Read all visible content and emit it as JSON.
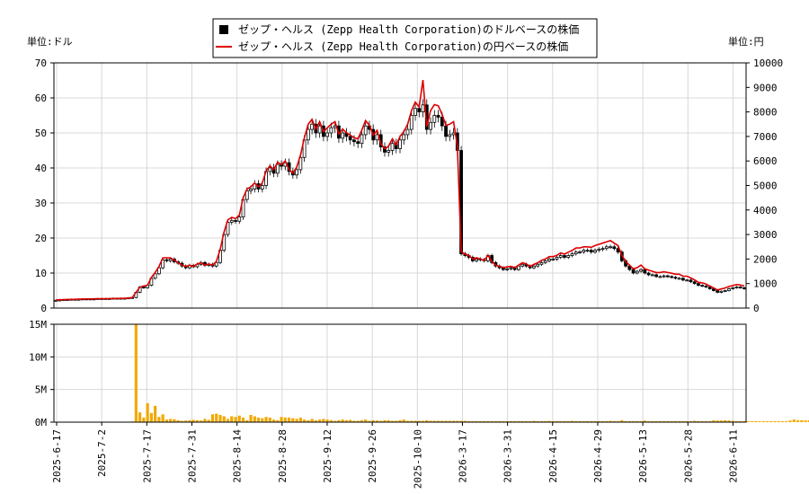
{
  "chart_data": {
    "type": "line",
    "legend": {
      "placement": "top-center",
      "entries": [
        {
          "label": "ゼップ・ヘルス (Zepp Health Corporation)のドルベースの株価",
          "color": "#000000",
          "marker": "candlestick"
        },
        {
          "label": "ゼップ・ヘルス (Zepp Health Corporation)の円ベースの株価",
          "color": "#dd0000",
          "marker": "line"
        }
      ]
    },
    "y_left_label": "単位:ドル",
    "y_right_label": "単位:円",
    "y_left": {
      "min": 0,
      "max": 70,
      "ticks": [
        "0",
        "10",
        "20",
        "30",
        "40",
        "50",
        "60",
        "70"
      ]
    },
    "y_right": {
      "min": 0,
      "max": 10000,
      "ticks": [
        "0",
        "1000",
        "2000",
        "3000",
        "4000",
        "5000",
        "6000",
        "7000",
        "8000",
        "9000",
        "10000"
      ]
    },
    "volume": {
      "min": 0,
      "max": 15000000,
      "ticks": [
        "0M",
        "5M",
        "10M",
        "15M"
      ],
      "values": [
        0,
        0,
        0,
        0,
        0,
        0,
        0,
        0,
        0,
        0,
        0,
        0,
        0,
        0,
        0,
        0,
        0,
        0,
        0,
        0,
        100000,
        15000000,
        1500000,
        700000,
        2900000,
        1400000,
        2500000,
        800000,
        1200000,
        400000,
        500000,
        450000,
        300000,
        200000,
        250000,
        300000,
        350000,
        300000,
        250000,
        500000,
        350000,
        1200000,
        1300000,
        1100000,
        900000,
        500000,
        900000,
        800000,
        1000000,
        700000,
        300000,
        1100000,
        900000,
        700000,
        600000,
        800000,
        700000,
        400000,
        300000,
        800000,
        700000,
        700000,
        600000,
        500000,
        700000,
        400000,
        300000,
        500000,
        300000,
        400000,
        500000,
        400000,
        300000,
        200000,
        300000,
        400000,
        300000,
        350000,
        200000,
        200000,
        300000,
        400000,
        200000,
        300000,
        250000,
        200000,
        300000,
        300000,
        200000,
        200000,
        300000,
        400000,
        200000,
        200000,
        200000,
        200000,
        200000,
        300000,
        200000,
        200000,
        200000,
        200000,
        200000,
        200000,
        200000,
        200000,
        200000,
        200000,
        150000,
        150000,
        150000,
        150000,
        150000,
        150000,
        150000,
        150000,
        150000,
        150000,
        150000,
        150000,
        150000,
        150000,
        150000,
        150000,
        150000,
        200000,
        150000,
        150000,
        150000,
        200000,
        150000,
        150000,
        150000,
        150000,
        150000,
        200000,
        150000,
        150000,
        150000,
        150000,
        150000,
        150000,
        150000,
        150000,
        150000,
        200000,
        150000,
        150000,
        300000,
        150000,
        150000,
        150000,
        150000,
        150000,
        250000,
        150000,
        150000,
        150000,
        150000,
        150000,
        150000,
        150000,
        150000,
        150000,
        150000,
        150000,
        150000,
        200000,
        150000,
        150000,
        150000,
        150000,
        300000,
        250000,
        250000,
        300000,
        250000,
        200000,
        150000,
        150000,
        150000,
        150000,
        150000,
        150000,
        150000,
        150000,
        150000,
        150000,
        150000,
        150000,
        150000,
        150000,
        250000,
        400000,
        300000,
        300000,
        250000,
        300000,
        400000,
        600000,
        500000,
        250000,
        250000,
        150000,
        150000
      ]
    },
    "x_ticks": [
      "2025-6-17",
      "2025-7-2",
      "2025-7-17",
      "2025-7-31",
      "2025-8-14",
      "2025-8-28",
      "2025-9-12",
      "2025-9-26",
      "2025-10-10",
      "2026-3-17",
      "2026-3-31",
      "2026-4-15",
      "2026-4-29",
      "2026-5-13",
      "2026-5-28",
      "2026-6-11"
    ],
    "usd_close": [
      2.2,
      2.3,
      2.4,
      2.4,
      2.5,
      2.5,
      2.5,
      2.6,
      2.6,
      2.6,
      2.6,
      2.7,
      2.7,
      2.7,
      2.7,
      2.8,
      2.8,
      2.8,
      2.8,
      2.9,
      3.0,
      4.5,
      6.0,
      5.8,
      6.5,
      8.5,
      9.8,
      11.5,
      13.8,
      13.5,
      14.0,
      13.2,
      12.8,
      12.0,
      11.5,
      12.2,
      11.8,
      12.5,
      13.0,
      12.2,
      12.5,
      12.0,
      13.0,
      16.5,
      21.0,
      24.5,
      25.0,
      24.8,
      26.0,
      31.0,
      33.5,
      34.0,
      35.5,
      34.0,
      35.0,
      39.0,
      40.0,
      38.5,
      41.0,
      40.5,
      41.5,
      39.0,
      38.0,
      39.5,
      43.0,
      48.0,
      51.0,
      52.5,
      50.0,
      52.0,
      49.0,
      50.0,
      51.5,
      52.0,
      48.5,
      50.0,
      49.0,
      48.0,
      47.5,
      47.0,
      49.5,
      52.0,
      51.0,
      48.0,
      49.5,
      46.0,
      44.5,
      45.0,
      47.0,
      45.5,
      48.0,
      49.5,
      51.0,
      55.0,
      57.0,
      56.0,
      58.0,
      51.0,
      53.0,
      55.0,
      54.5,
      52.0,
      49.0,
      49.5,
      50.0,
      45.0,
      15.5,
      15.0,
      14.5,
      13.5,
      14.0,
      13.8,
      13.5,
      15.0,
      13.0,
      12.0,
      11.5,
      11.0,
      11.2,
      11.5,
      11.0,
      12.0,
      12.5,
      12.0,
      11.5,
      12.0,
      12.5,
      13.0,
      13.5,
      14.0,
      14.0,
      14.5,
      15.0,
      14.5,
      15.0,
      15.5,
      16.0,
      16.0,
      16.5,
      16.5,
      16.0,
      16.5,
      16.8,
      17.0,
      17.5,
      17.5,
      17.0,
      16.0,
      13.5,
      12.0,
      11.0,
      10.0,
      10.5,
      11.0,
      10.0,
      9.5,
      9.5,
      9.0,
      9.0,
      9.2,
      9.0,
      8.8,
      8.5,
      8.5,
      8.0,
      8.0,
      7.5,
      7.0,
      6.5,
      6.3,
      6.0,
      5.5,
      5.0,
      4.5,
      4.8,
      5.0,
      5.5,
      5.8,
      6.0,
      5.8,
      5.5
    ],
    "jpy_close": [
      330,
      340,
      345,
      350,
      355,
      360,
      365,
      370,
      372,
      375,
      378,
      380,
      382,
      385,
      388,
      390,
      392,
      395,
      400,
      410,
      430,
      650,
      850,
      900,
      930,
      1250,
      1450,
      1700,
      2050,
      2050,
      2050,
      1950,
      1850,
      1750,
      1700,
      1750,
      1700,
      1800,
      1850,
      1750,
      1800,
      1750,
      1900,
      2400,
      3100,
      3600,
      3700,
      3650,
      3800,
      4500,
      4850,
      4950,
      5100,
      4950,
      5100,
      5600,
      5800,
      5650,
      5950,
      5850,
      6000,
      5650,
      5500,
      5750,
      6250,
      6950,
      7500,
      7700,
      7300,
      7600,
      7200,
      7350,
      7500,
      7600,
      7100,
      7300,
      7150,
      7050,
      6950,
      6900,
      7250,
      7650,
      7450,
      7050,
      7250,
      6700,
      6500,
      6600,
      6900,
      6650,
      7000,
      7200,
      7500,
      8050,
      8400,
      8200,
      9300,
      7400,
      8050,
      8300,
      8250,
      7900,
      7450,
      7500,
      7600,
      6600,
      2300,
      2200,
      2150,
      2000,
      2050,
      2000,
      1950,
      2150,
      1900,
      1750,
      1700,
      1650,
      1680,
      1700,
      1650,
      1750,
      1850,
      1800,
      1700,
      1780,
      1850,
      1950,
      2000,
      2100,
      2100,
      2150,
      2250,
      2200,
      2280,
      2350,
      2450,
      2450,
      2500,
      2500,
      2480,
      2550,
      2600,
      2650,
      2700,
      2750,
      2650,
      2550,
      2150,
      1900,
      1750,
      1600,
      1650,
      1750,
      1600,
      1550,
      1500,
      1450,
      1450,
      1480,
      1450,
      1420,
      1380,
      1380,
      1300,
      1300,
      1230,
      1150,
      1050,
      1030,
      980,
      900,
      820,
      740,
      780,
      820,
      880,
      920,
      960,
      940,
      900
    ]
  }
}
